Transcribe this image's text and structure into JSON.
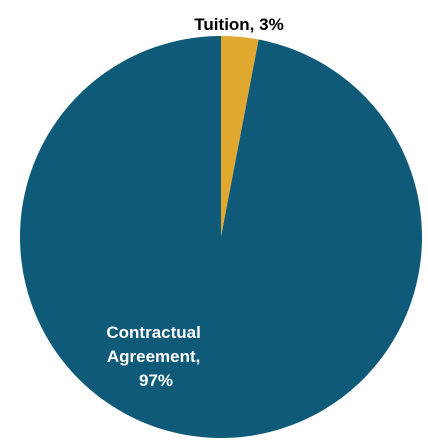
{
  "chart_data": {
    "type": "pie",
    "slices": [
      {
        "label_lines": [
          "Tuition, 3%"
        ],
        "value": 3,
        "color": "#E0A82E",
        "label_color": "#000000"
      },
      {
        "label_lines": [
          "Contractual",
          "Agreement,",
          "97%"
        ],
        "value": 97,
        "color": "#0E5A78",
        "label_color": "#ffffff"
      }
    ],
    "start_angle_deg": 0,
    "direction": "clockwise"
  }
}
